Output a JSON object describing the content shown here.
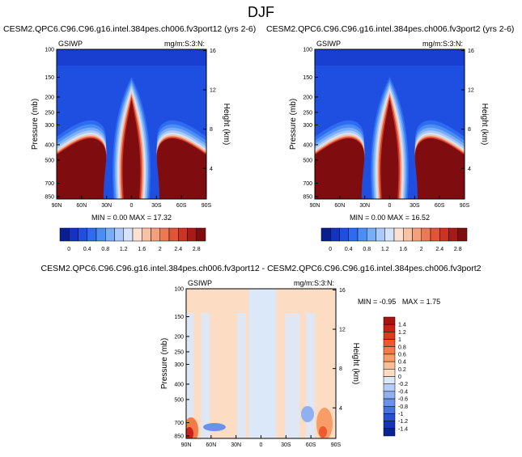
{
  "figure_title": "DJF",
  "chart_data": [
    {
      "type": "heatmap",
      "title": "CESM2.QPC6.C96.C96.g16.intel.384pes.ch006.fv3port12 (yrs 2-6)",
      "left_label": "GSIWP",
      "right_label": "mg/m:S:3:N:",
      "ylabel": "Pressure (mb)",
      "y2label": "Height (km)",
      "x_ticks": [
        "90N",
        "60N",
        "30N",
        "0",
        "30S",
        "60S",
        "90S"
      ],
      "y_ticks": [
        "100",
        "150",
        "200",
        "250",
        "300",
        "400",
        "500",
        "700",
        "850"
      ],
      "y2_ticks": [
        "16",
        "12",
        "8",
        "4"
      ],
      "stats": {
        "min_label": "MIN =",
        "min": "0.00",
        "max_label": "MAX =",
        "max": "17.32"
      },
      "colorbar": {
        "orientation": "horizontal",
        "labels": [
          "0",
          "0.4",
          "0.8",
          "1.2",
          "1.6",
          "2",
          "2.4",
          "2.8"
        ],
        "colors": [
          "#0a1f8f",
          "#1433c2",
          "#1f4fe0",
          "#2f6bf0",
          "#4a8df5",
          "#7aadf8",
          "#abcaf9",
          "#d5e4fa",
          "#fbe1d2",
          "#f8c2a6",
          "#f59f7d",
          "#ee7856",
          "#e2533a",
          "#cb3325",
          "#a61b17",
          "#7f0d0f"
        ],
        "range": [
          0,
          3.2
        ]
      }
    },
    {
      "type": "heatmap",
      "title": "CESM2.QPC6.C96.C96.g16.intel.384pes.ch006.fv3port2 (yrs 2-6)",
      "left_label": "GSIWP",
      "right_label": "mg/m:S:3:N:",
      "ylabel": "Pressure (mb)",
      "y2label": "Height (km)",
      "x_ticks": [
        "90N",
        "60N",
        "30N",
        "0",
        "30S",
        "60S",
        "90S"
      ],
      "y_ticks": [
        "100",
        "150",
        "200",
        "250",
        "300",
        "400",
        "500",
        "700",
        "850"
      ],
      "y2_ticks": [
        "16",
        "12",
        "8",
        "4"
      ],
      "stats": {
        "min_label": "MIN =",
        "min": "0.00",
        "max_label": "MAX =",
        "max": "16.52"
      },
      "colorbar": {
        "orientation": "horizontal",
        "labels": [
          "0",
          "0.4",
          "0.8",
          "1.2",
          "1.6",
          "2",
          "2.4",
          "2.8"
        ],
        "colors": [
          "#0a1f8f",
          "#1433c2",
          "#1f4fe0",
          "#2f6bf0",
          "#4a8df5",
          "#7aadf8",
          "#abcaf9",
          "#d5e4fa",
          "#fbe1d2",
          "#f8c2a6",
          "#f59f7d",
          "#ee7856",
          "#e2533a",
          "#cb3325",
          "#a61b17",
          "#7f0d0f"
        ],
        "range": [
          0,
          3.2
        ]
      }
    },
    {
      "type": "heatmap",
      "title": "CESM2.QPC6.C96.C96.g16.intel.384pes.ch006.fv3port12 - CESM2.QPC6.C96.C96.g16.intel.384pes.ch006.fv3port2",
      "left_label": "GSIWP",
      "right_label": "mg/m:S:3:N:",
      "ylabel": "Pressure (mb)",
      "y2label": "Height (km)",
      "x_ticks": [
        "90N",
        "60N",
        "30N",
        "0",
        "30S",
        "60S",
        "90S"
      ],
      "y_ticks": [
        "100",
        "150",
        "200",
        "250",
        "300",
        "400",
        "500",
        "700",
        "850"
      ],
      "y2_ticks": [
        "16",
        "12",
        "8",
        "4"
      ],
      "stats": {
        "min_label": "MIN =",
        "min": "-0.95",
        "max_label": "MAX =",
        "max": "1.75"
      },
      "colorbar": {
        "orientation": "vertical",
        "labels": [
          "1.4",
          "1.2",
          "1",
          "0.8",
          "0.6",
          "0.4",
          "0.2",
          "0",
          "-0.2",
          "-0.4",
          "-0.6",
          "-0.8",
          "-1",
          "-1.2",
          "-1.4"
        ],
        "colors": [
          "#a8150f",
          "#c9201a",
          "#de3a20",
          "#ec5a2e",
          "#f47b45",
          "#f99d68",
          "#fbbd93",
          "#fcdcc3",
          "#dbe8f9",
          "#b5cdf6",
          "#8fb0f1",
          "#6a92ea",
          "#4572df",
          "#2551cf",
          "#1434b3",
          "#0b2390"
        ],
        "range": [
          -1.6,
          1.6
        ]
      }
    }
  ]
}
